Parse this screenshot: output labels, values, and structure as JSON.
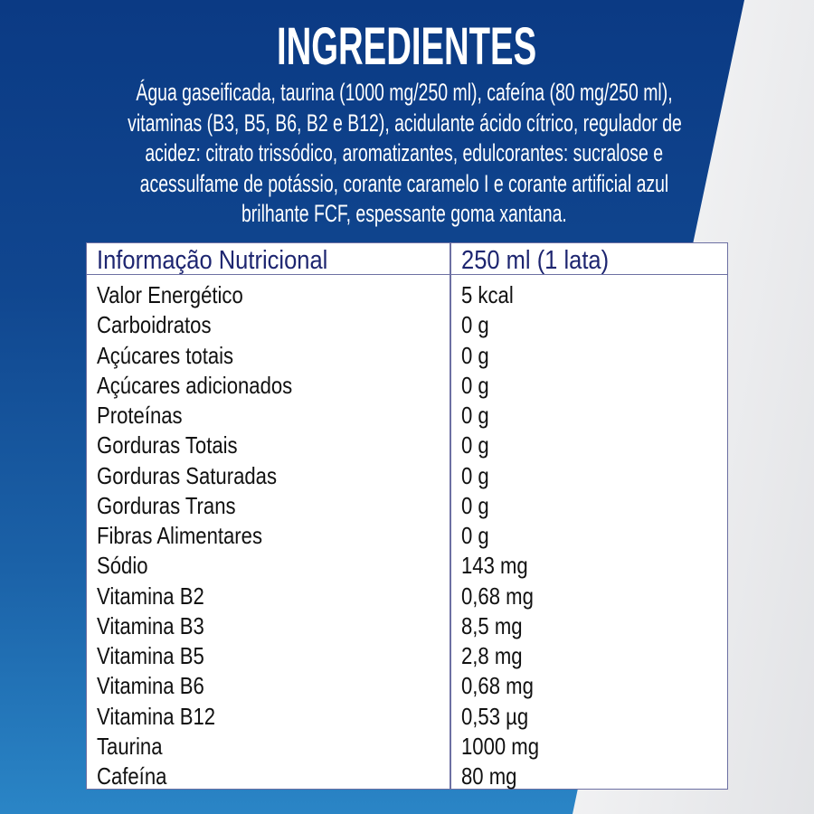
{
  "colors": {
    "background_blue_top": "#0b3a84",
    "background_blue_bottom": "#2a85c6",
    "header_text": "#1d2570",
    "table_border": "#6d70a3"
  },
  "title": "INGREDIENTES",
  "ingredients_lines": [
    "Água gaseificada, taurina (1000 mg/250 ml), cafeína (80 mg/250 ml),",
    "vitaminas (B3, B5, B6, B2 e B12), acidulante ácido cítrico, regulador de",
    "acidez: citrato trissódico, aromatizantes, edulcorantes: sucralose e",
    "acessulfame de potássio, corante caramelo I e corante artificial azul",
    "brilhante FCF, espessante goma xantana."
  ],
  "nutrition": {
    "header": [
      "Informação Nutricional",
      "250 ml (1 lata)"
    ],
    "rows": [
      [
        "Valor Energético",
        "5 kcal"
      ],
      [
        "Carboidratos",
        "0 g"
      ],
      [
        "Açúcares totais",
        "0 g"
      ],
      [
        "Açúcares adicionados",
        "0 g"
      ],
      [
        "Proteínas",
        "0 g"
      ],
      [
        "Gorduras Totais",
        "0 g"
      ],
      [
        "Gorduras Saturadas",
        "0 g"
      ],
      [
        "Gorduras Trans",
        "0 g"
      ],
      [
        "Fibras Alimentares",
        "0 g"
      ],
      [
        "Sódio",
        "143 mg"
      ],
      [
        "Vitamina B2",
        "0,68 mg"
      ],
      [
        "Vitamina B3",
        "8,5 mg"
      ],
      [
        "Vitamina B5",
        "2,8 mg"
      ],
      [
        "Vitamina B6",
        "0,68 mg"
      ],
      [
        "Vitamina B12",
        "0,53 µg"
      ],
      [
        "Taurina",
        "1000 mg"
      ],
      [
        "Cafeína",
        "80 mg"
      ]
    ]
  }
}
